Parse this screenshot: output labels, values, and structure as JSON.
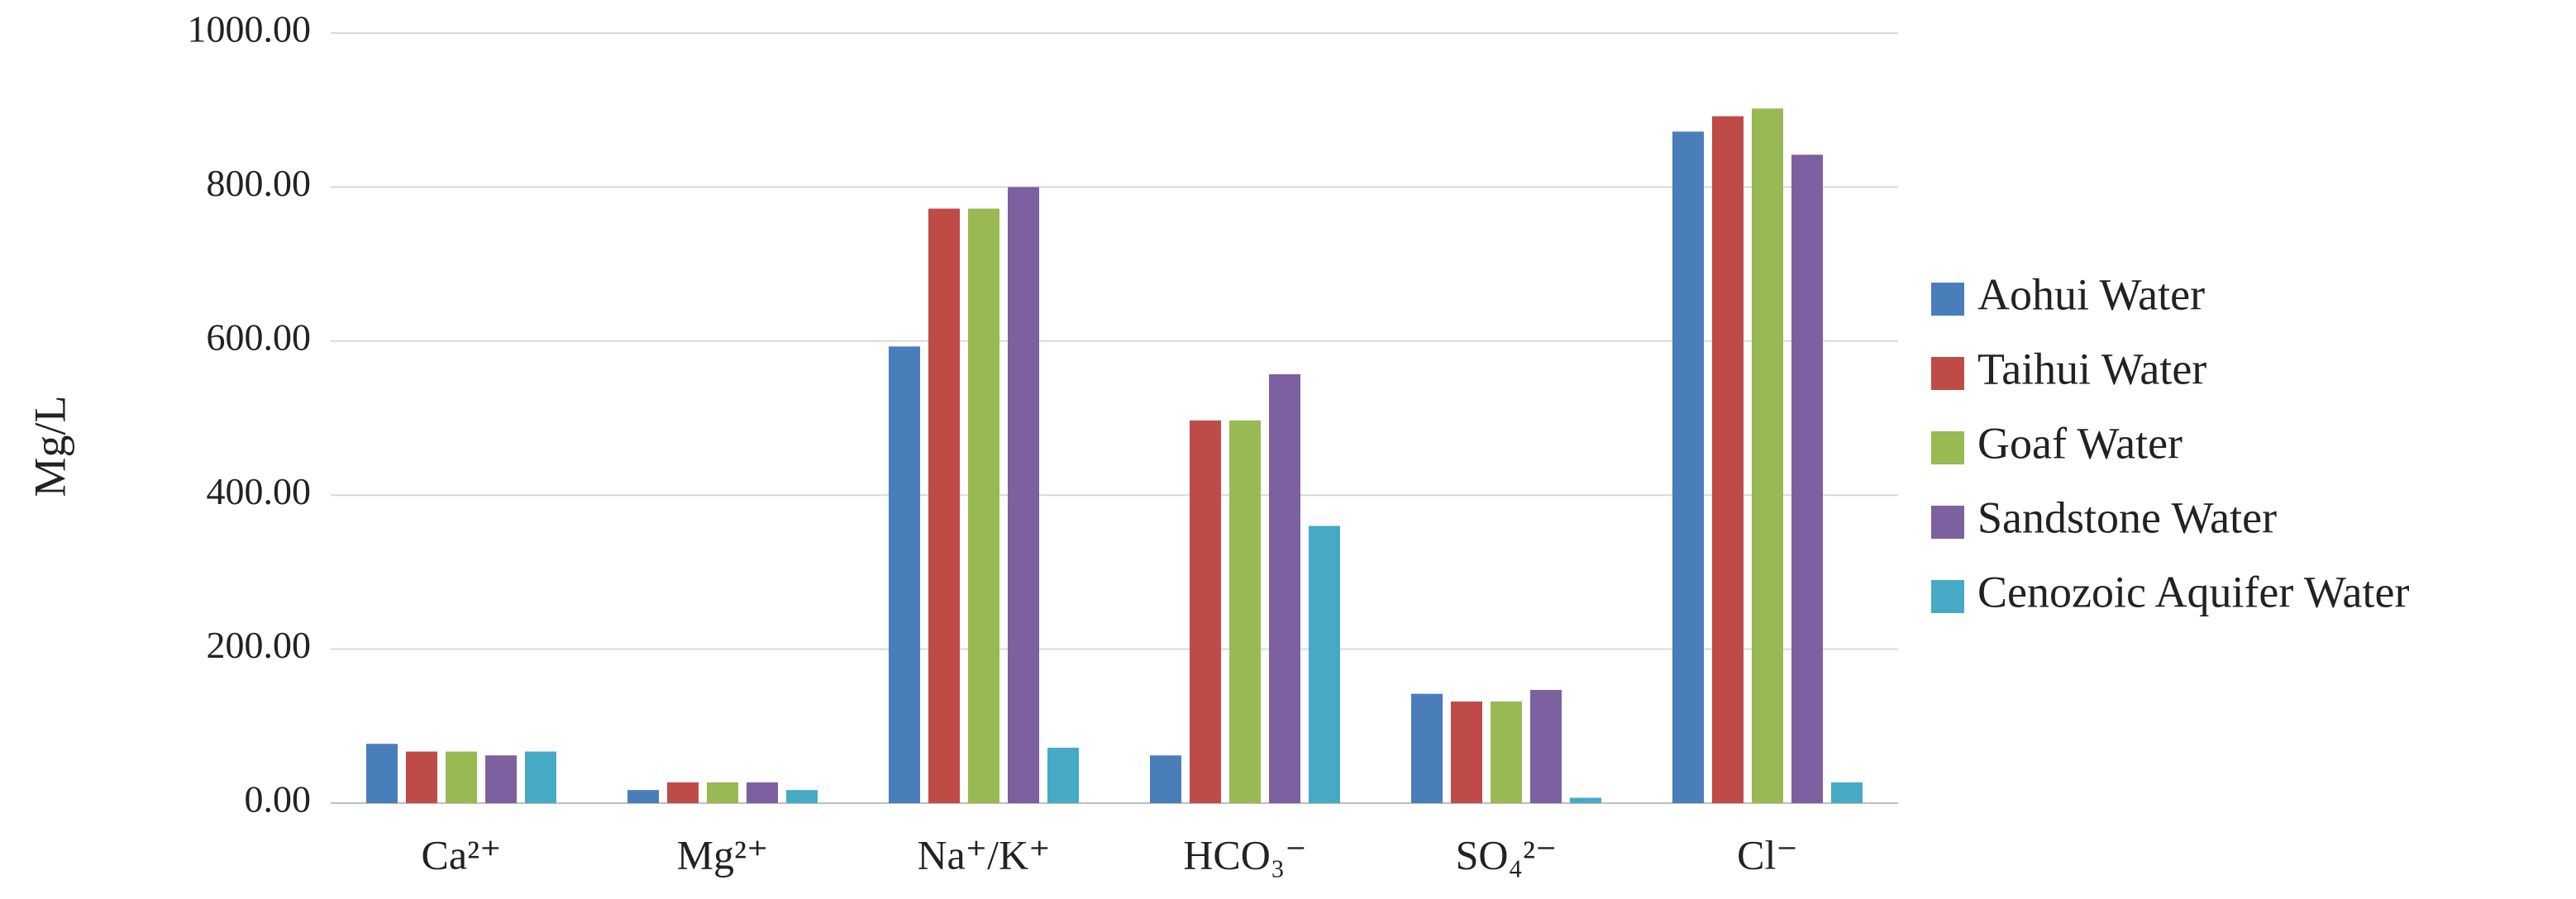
{
  "chart_data": {
    "type": "bar",
    "y_label": "Mg/L",
    "categories": [
      "Ca²⁺",
      "Mg²⁺",
      "Na⁺/K⁺",
      "HCO₃⁻",
      "SO₄²⁻",
      "Cl⁻"
    ],
    "series": [
      {
        "name": "Aohui Water",
        "color": "#4a7ebb",
        "values": [
          77,
          17,
          593,
          62,
          142,
          872
        ]
      },
      {
        "name": "Taihui Water",
        "color": "#be4b48",
        "values": [
          67,
          27,
          772,
          497,
          132,
          892
        ]
      },
      {
        "name": "Goaf Water",
        "color": "#98b954",
        "values": [
          67,
          27,
          772,
          497,
          132,
          902
        ]
      },
      {
        "name": "Sandstone Water",
        "color": "#7d60a0",
        "values": [
          62,
          27,
          800,
          557,
          147,
          842
        ]
      },
      {
        "name": "Cenozoic Aquifer Water",
        "color": "#46aac5",
        "values": [
          67,
          17,
          72,
          360,
          7,
          27
        ]
      }
    ],
    "ylim": [
      0,
      1000
    ],
    "yticks": [
      {
        "value": 0,
        "label": "0.00"
      },
      {
        "value": 200,
        "label": "200.00"
      },
      {
        "value": 400,
        "label": "400.00"
      },
      {
        "value": 600,
        "label": "600.00"
      },
      {
        "value": 800,
        "label": "800.00"
      },
      {
        "value": 1000,
        "label": "1000.00"
      }
    ],
    "grid": true,
    "legend": "right"
  }
}
